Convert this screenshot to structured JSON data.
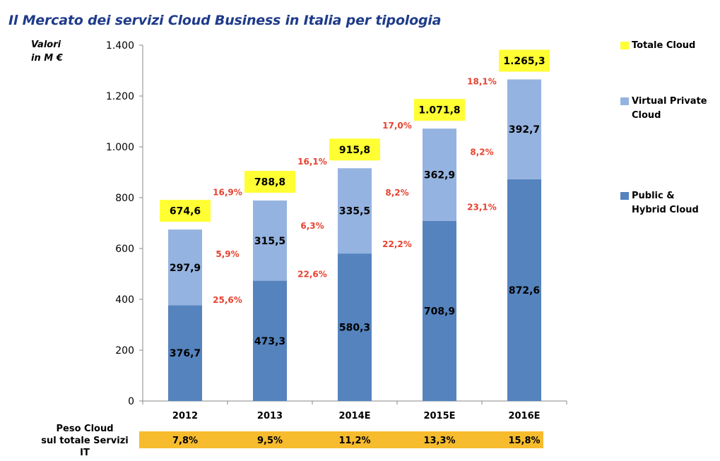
{
  "title": "Il Mercato dei servizi Cloud Business in Italia per tipologia",
  "unit_label": [
    "Valori",
    "in M €"
  ],
  "legend": [
    {
      "key": "total",
      "label": [
        "Totale Cloud"
      ],
      "color": "#ffff33"
    },
    {
      "key": "vpc",
      "label": [
        "Virtual Private",
        "Cloud"
      ],
      "color": "#95b3e0"
    },
    {
      "key": "public",
      "label": [
        "Public &",
        "Hybrid Cloud"
      ],
      "color": "#5583be"
    }
  ],
  "peso_label": [
    "Peso Cloud",
    "sul totale Servizi IT"
  ],
  "peso_color": "#f6bc2e",
  "chart_data": {
    "type": "bar",
    "stacked": true,
    "categories": [
      "2012",
      "2013",
      "2014E",
      "2015E",
      "2016E"
    ],
    "series": [
      {
        "name": "Public & Hybrid Cloud",
        "values": [
          376.7,
          473.3,
          580.3,
          708.9,
          872.6
        ],
        "labels": [
          "376,7",
          "473,3",
          "580,3",
          "708,9",
          "872,6"
        ],
        "color": "#5583be"
      },
      {
        "name": "Virtual Private Cloud",
        "values": [
          297.9,
          315.5,
          335.5,
          362.9,
          392.7
        ],
        "labels": [
          "297,9",
          "315,5",
          "335,5",
          "362,9",
          "392,7"
        ],
        "color": "#95b3e0"
      }
    ],
    "totals": {
      "name": "Totale Cloud",
      "values": [
        674.6,
        788.8,
        915.8,
        1071.8,
        1265.3
      ],
      "labels": [
        "674,6",
        "788,8",
        "915,8",
        "1.071,8",
        "1.265,3"
      ]
    },
    "growth": {
      "public": [
        "25,6%",
        "22,6%",
        "22,2%",
        "23,1%"
      ],
      "vpc": [
        "5,9%",
        "6,3%",
        "8,2%",
        "8,2%"
      ],
      "total": [
        "16,9%",
        "16,1%",
        "17,0%",
        "18,1%"
      ]
    },
    "peso_cloud": [
      "7,8%",
      "9,5%",
      "11,2%",
      "13,3%",
      "15,8%"
    ],
    "ylim": [
      0,
      1400
    ],
    "yticks": [
      0,
      200,
      400,
      600,
      800,
      1000,
      1200,
      1400
    ],
    "ytick_labels": [
      "0",
      "200",
      "400",
      "600",
      "800",
      "1.000",
      "1.200",
      "1.400"
    ],
    "xlabel": "",
    "ylabel": "",
    "grid": false,
    "legend_position": "right"
  }
}
